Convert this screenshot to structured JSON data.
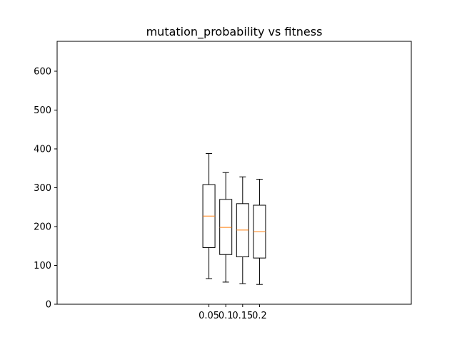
{
  "chart_data": {
    "type": "box",
    "title": "mutation_probability vs fitness",
    "xlabel": "",
    "ylabel": "",
    "ylim": [
      0,
      677
    ],
    "xlim": [
      -0.4,
      0.65
    ],
    "yticks": [
      0,
      100,
      200,
      300,
      400,
      500,
      600
    ],
    "grid": false,
    "legend": "none",
    "colors": {
      "box": "#000000",
      "median": "#ff7f0e",
      "background": "#ffffff"
    },
    "series": [
      {
        "label": "0.05",
        "x": 0.05,
        "whisker_low": 66,
        "q1": 146,
        "median": 227,
        "q3": 308,
        "whisker_high": 388
      },
      {
        "label": "0.1",
        "x": 0.1,
        "whisker_low": 57,
        "q1": 128,
        "median": 198,
        "q3": 270,
        "whisker_high": 339
      },
      {
        "label": "0.15",
        "x": 0.15,
        "whisker_low": 53,
        "q1": 122,
        "median": 191,
        "q3": 259,
        "whisker_high": 328
      },
      {
        "label": "0.2",
        "x": 0.2,
        "whisker_low": 51,
        "q1": 119,
        "median": 187,
        "q3": 255,
        "whisker_high": 322
      }
    ]
  }
}
